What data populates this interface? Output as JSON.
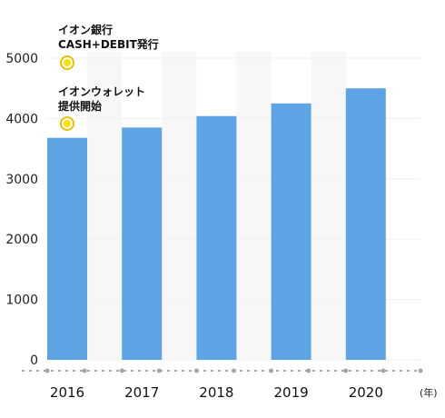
{
  "chart_data": {
    "type": "bar",
    "categories": [
      "2016",
      "2017",
      "2018",
      "2019",
      "2020"
    ],
    "values": [
      3680,
      3850,
      4040,
      4250,
      4500
    ],
    "ylim": [
      0,
      5000
    ],
    "yticks": [
      "0",
      "1000",
      "2000",
      "3000",
      "4000",
      "5000"
    ],
    "x_unit": "(年)",
    "grid": false,
    "annotations": [
      {
        "lines": [
          "イオン銀行",
          "CASH+DEBIT発行"
        ],
        "marker": "circle"
      },
      {
        "lines": [
          "イオンウォレット",
          "提供開始"
        ],
        "marker": "circle"
      }
    ]
  },
  "colors": {
    "bar": "#5ea4e4",
    "band": "#f7f7f7",
    "axis_dots": "#a6a6a6",
    "marker_fill": "#ffe100",
    "marker_ring": "#e8c200"
  }
}
